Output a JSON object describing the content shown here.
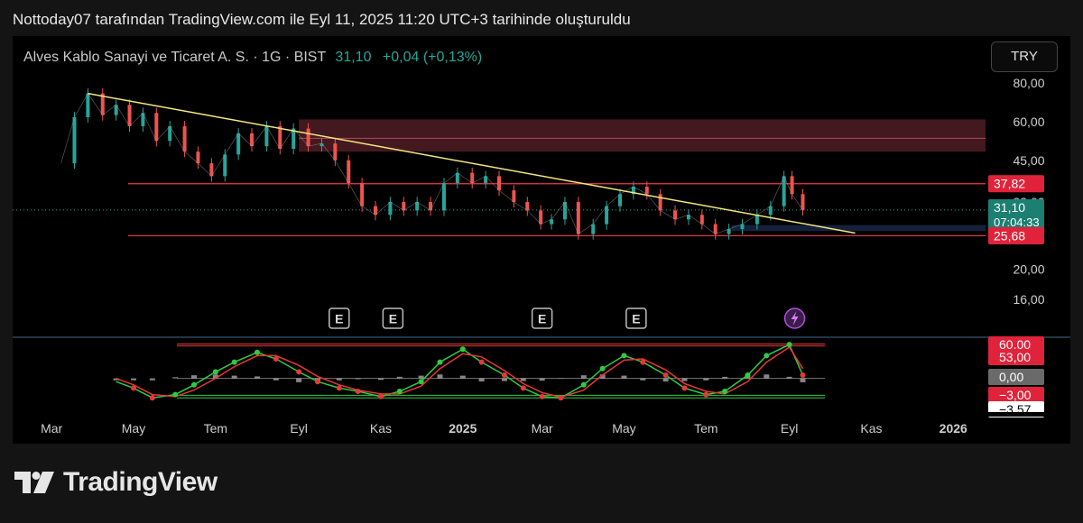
{
  "header": {
    "caption": "Nottoday07 tarafından TradingView.com ile Eyl 11, 2025 11:20 UTC+3 tarihinde oluşturuldu"
  },
  "symbol": {
    "name": "Alves Kablo Sanayi ve Ticaret A. S. · 1G · BIST",
    "last": "31,10",
    "change": "+0,04 (+0,13%)"
  },
  "currency_button": "TRY",
  "footer": {
    "brand": "TradingView"
  },
  "colors": {
    "up": "#26a69a",
    "down": "#ef5350",
    "trendline": "#f5e680",
    "level_line": "#f23645",
    "supply_zone": "#4a1c22",
    "demand_zone": "#14213d",
    "oscillator_fast": "#2ecc40",
    "oscillator_slow": "#e53935"
  },
  "chart_data": [
    {
      "type": "line",
      "title": "Alves Kablo Sanayi ve Ticaret A. S. · 1G · BIST",
      "price_scale": "log",
      "ylim": [
        16,
        80
      ],
      "y_ticks": [
        {
          "value": 80,
          "label": "80,00"
        },
        {
          "value": 60,
          "label": "60,00"
        },
        {
          "value": 45,
          "label": "45,00"
        },
        {
          "value": 33,
          "label": "33,00"
        },
        {
          "value": 20,
          "label": "20,00"
        },
        {
          "value": 16,
          "label": "16,00"
        }
      ],
      "x_labels": [
        {
          "date": "2024-03-01",
          "label": "Mar",
          "bold": false
        },
        {
          "date": "2024-05-01",
          "label": "May",
          "bold": false
        },
        {
          "date": "2024-07-01",
          "label": "Tem",
          "bold": false
        },
        {
          "date": "2024-09-01",
          "label": "Eyl",
          "bold": false
        },
        {
          "date": "2024-11-01",
          "label": "Kas",
          "bold": false
        },
        {
          "date": "2025-01-01",
          "label": "2025",
          "bold": true
        },
        {
          "date": "2025-03-01",
          "label": "Mar",
          "bold": false
        },
        {
          "date": "2025-05-01",
          "label": "May",
          "bold": false
        },
        {
          "date": "2025-07-01",
          "label": "Tem",
          "bold": false
        },
        {
          "date": "2025-09-01",
          "label": "Eyl",
          "bold": false
        },
        {
          "date": "2025-11-01",
          "label": "Kas",
          "bold": false
        },
        {
          "date": "2026-01-01",
          "label": "2026",
          "bold": true
        }
      ],
      "x_range": [
        "2024-02-01",
        "2026-01-25"
      ],
      "series": [
        {
          "values": [
            [
              "2024-03-08",
              44
            ],
            [
              "2024-03-18",
              62
            ],
            [
              "2024-03-28",
              74
            ],
            [
              "2024-04-08",
              63
            ],
            [
              "2024-04-18",
              68
            ],
            [
              "2024-04-28",
              58
            ],
            [
              "2024-05-08",
              64
            ],
            [
              "2024-05-18",
              52
            ],
            [
              "2024-05-28",
              58
            ],
            [
              "2024-06-08",
              48
            ],
            [
              "2024-06-18",
              44
            ],
            [
              "2024-06-28",
              40
            ],
            [
              "2024-07-08",
              47
            ],
            [
              "2024-07-18",
              55
            ],
            [
              "2024-07-28",
              50
            ],
            [
              "2024-08-08",
              58
            ],
            [
              "2024-08-18",
              49
            ],
            [
              "2024-08-28",
              57
            ],
            [
              "2024-09-08",
              50
            ],
            [
              "2024-09-18",
              51
            ],
            [
              "2024-09-28",
              45
            ],
            [
              "2024-10-08",
              38
            ],
            [
              "2024-10-18",
              32
            ],
            [
              "2024-10-28",
              30
            ],
            [
              "2024-11-08",
              33
            ],
            [
              "2024-11-18",
              31
            ],
            [
              "2024-11-28",
              33
            ],
            [
              "2024-12-08",
              31
            ],
            [
              "2024-12-18",
              38
            ],
            [
              "2024-12-28",
              41
            ],
            [
              "2025-01-08",
              38
            ],
            [
              "2025-01-18",
              40
            ],
            [
              "2025-01-28",
              36
            ],
            [
              "2025-02-08",
              33
            ],
            [
              "2025-02-18",
              31
            ],
            [
              "2025-02-28",
              28
            ],
            [
              "2025-03-08",
              29
            ],
            [
              "2025-03-18",
              33
            ],
            [
              "2025-03-28",
              26
            ],
            [
              "2025-04-08",
              28
            ],
            [
              "2025-04-18",
              32
            ],
            [
              "2025-04-28",
              35
            ],
            [
              "2025-05-08",
              37
            ],
            [
              "2025-05-18",
              35
            ],
            [
              "2025-05-28",
              31
            ],
            [
              "2025-06-08",
              29
            ],
            [
              "2025-06-18",
              30
            ],
            [
              "2025-06-28",
              28
            ],
            [
              "2025-07-08",
              26
            ],
            [
              "2025-07-18",
              27
            ],
            [
              "2025-07-28",
              28
            ],
            [
              "2025-08-08",
              30
            ],
            [
              "2025-08-18",
              32
            ],
            [
              "2025-08-28",
              40
            ],
            [
              "2025-09-03",
              35
            ],
            [
              "2025-09-11",
              31.1
            ]
          ]
        }
      ],
      "horizontal_levels": [
        37.82,
        25.68
      ],
      "supply_zone": [
        48,
        61
      ],
      "supply_zone_mid": 53,
      "demand_zone": {
        "from": "2025-07-20",
        "to": "2025-11-01",
        "y": [
          26.6,
          27.8
        ]
      },
      "trendline": [
        [
          "2024-03-28",
          74
        ],
        [
          "2025-10-20",
          26.2
        ]
      ],
      "price_badges": [
        {
          "label": "37,82",
          "value": 37.82
        },
        {
          "label": "31,10",
          "sublabel": "07:04:33",
          "value": 31.1
        },
        {
          "label": "25,68",
          "value": 25.68
        }
      ],
      "event_markers": [
        {
          "date": "2024-10-01",
          "label": "E"
        },
        {
          "date": "2024-11-10",
          "label": "E"
        },
        {
          "date": "2025-03-01",
          "label": "E"
        },
        {
          "date": "2025-05-10",
          "label": "E"
        }
      ],
      "dividend_marker_date": "2025-09-05"
    },
    {
      "type": "line",
      "subtitle": "oscillator",
      "ylim": [
        -4.5,
        5.5
      ],
      "levels": [
        5.3,
        5.0,
        0,
        -2.6,
        -3.0
      ],
      "y_badges": [
        {
          "label": "60,00",
          "value": 5.3
        },
        {
          "label": "53,00",
          "value": 5.0
        },
        {
          "label": "0,00",
          "value": 0
        },
        {
          "label": "−3,00",
          "value": -3.0
        },
        {
          "label": "−3,57",
          "value": -3.57
        }
      ],
      "series": [
        {
          "color_key": "oscillator_fast",
          "values": [
            [
              "2024-04-18",
              -0.5
            ],
            [
              "2024-05-01",
              -1.5
            ],
            [
              "2024-05-15",
              -3.0
            ],
            [
              "2024-06-01",
              -2.5
            ],
            [
              "2024-06-15",
              -1.0
            ],
            [
              "2024-07-01",
              1.0
            ],
            [
              "2024-07-15",
              2.5
            ],
            [
              "2024-08-01",
              4.0
            ],
            [
              "2024-08-15",
              3.0
            ],
            [
              "2024-09-01",
              1.0
            ],
            [
              "2024-09-15",
              -0.5
            ],
            [
              "2024-10-01",
              -1.5
            ],
            [
              "2024-10-15",
              -2.0
            ],
            [
              "2024-11-01",
              -2.8
            ],
            [
              "2024-11-15",
              -2.0
            ],
            [
              "2024-12-01",
              -0.5
            ],
            [
              "2024-12-15",
              2.5
            ],
            [
              "2025-01-01",
              4.5
            ],
            [
              "2025-01-15",
              2.5
            ],
            [
              "2025-02-01",
              0.5
            ],
            [
              "2025-02-15",
              -1.5
            ],
            [
              "2025-03-01",
              -2.8
            ],
            [
              "2025-03-15",
              -3.0
            ],
            [
              "2025-04-01",
              -1.0
            ],
            [
              "2025-04-15",
              1.5
            ],
            [
              "2025-05-01",
              3.5
            ],
            [
              "2025-05-15",
              2.5
            ],
            [
              "2025-06-01",
              0.5
            ],
            [
              "2025-06-15",
              -1.5
            ],
            [
              "2025-07-01",
              -2.5
            ],
            [
              "2025-07-15",
              -2.0
            ],
            [
              "2025-08-01",
              0.5
            ],
            [
              "2025-08-15",
              3.5
            ],
            [
              "2025-09-01",
              5.2
            ],
            [
              "2025-09-11",
              0.5
            ]
          ]
        },
        {
          "color_key": "oscillator_slow",
          "values": [
            [
              "2024-04-18",
              0.0
            ],
            [
              "2024-05-01",
              -1.0
            ],
            [
              "2024-05-15",
              -2.5
            ],
            [
              "2024-06-01",
              -2.8
            ],
            [
              "2024-06-15",
              -1.8
            ],
            [
              "2024-07-01",
              0.0
            ],
            [
              "2024-07-15",
              1.8
            ],
            [
              "2024-08-01",
              3.5
            ],
            [
              "2024-08-15",
              3.5
            ],
            [
              "2024-09-01",
              2.0
            ],
            [
              "2024-09-15",
              0.3
            ],
            [
              "2024-10-01",
              -1.0
            ],
            [
              "2024-10-15",
              -1.8
            ],
            [
              "2024-11-01",
              -2.4
            ],
            [
              "2024-11-15",
              -2.4
            ],
            [
              "2024-12-01",
              -1.2
            ],
            [
              "2024-12-15",
              1.5
            ],
            [
              "2025-01-01",
              3.8
            ],
            [
              "2025-01-15",
              3.3
            ],
            [
              "2025-02-01",
              1.2
            ],
            [
              "2025-02-15",
              -0.8
            ],
            [
              "2025-03-01",
              -2.2
            ],
            [
              "2025-03-15",
              -2.9
            ],
            [
              "2025-04-01",
              -1.8
            ],
            [
              "2025-04-15",
              0.5
            ],
            [
              "2025-05-01",
              2.8
            ],
            [
              "2025-05-15",
              3.0
            ],
            [
              "2025-06-01",
              1.3
            ],
            [
              "2025-06-15",
              -0.8
            ],
            [
              "2025-07-01",
              -2.0
            ],
            [
              "2025-07-15",
              -2.4
            ],
            [
              "2025-08-01",
              -0.5
            ],
            [
              "2025-08-15",
              2.5
            ],
            [
              "2025-09-01",
              4.8
            ],
            [
              "2025-09-11",
              1.5
            ]
          ]
        }
      ]
    }
  ]
}
